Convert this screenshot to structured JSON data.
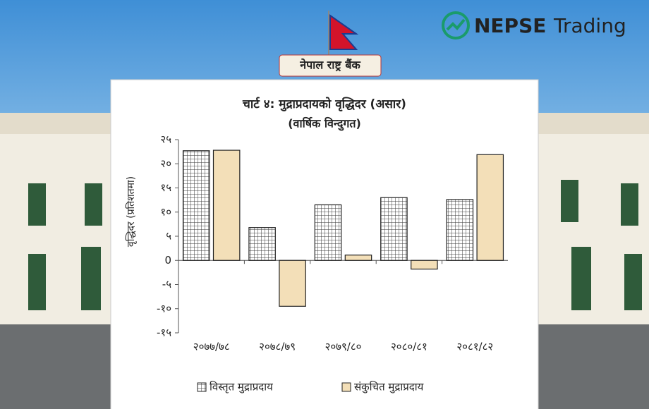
{
  "brand": {
    "name": "NEPSE",
    "suffix": "Trading"
  },
  "sign": "नेपाल राष्ट्र बैंक",
  "chart_data": {
    "type": "bar",
    "title": "चार्ट ४: मुद्राप्रदायको वृद्धिदर (असार)",
    "subtitle": "(वार्षिक विन्दुगत)",
    "y_label": "वृद्धिदर (प्रतिशतमा)",
    "categories": [
      "२०७७/७८",
      "२०७८/७९",
      "२०७९/८०",
      "२०८०/८१",
      "२०८१/८२"
    ],
    "series": [
      {
        "name": "विस्तृत मुद्राप्रदाय",
        "color": "#3a3a3a",
        "pattern": "grid",
        "values": [
          22.7,
          6.8,
          11.5,
          13.0,
          12.6
        ]
      },
      {
        "name": "संकुचित मुद्राप्रदाय",
        "color": "#f3dfb8",
        "values": [
          22.8,
          -9.5,
          1.1,
          -1.8,
          21.9
        ]
      }
    ],
    "ylim": [
      -15,
      25
    ],
    "yticks": [
      {
        "value": 25,
        "label": "२५"
      },
      {
        "value": 20,
        "label": "२०"
      },
      {
        "value": 15,
        "label": "१५"
      },
      {
        "value": 10,
        "label": "१०"
      },
      {
        "value": 5,
        "label": "५"
      },
      0,
      {
        "value": -5,
        "label": "-५"
      },
      {
        "value": -10,
        "label": "-१०"
      },
      {
        "value": -15,
        "label": "-१५"
      }
    ],
    "grid": false,
    "legend": "bottom"
  }
}
